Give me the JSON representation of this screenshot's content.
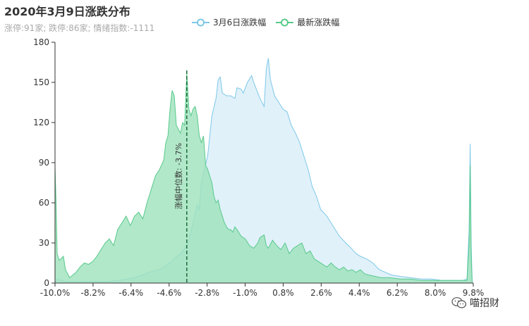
{
  "title": "2020年3月9日涨跌分布",
  "subtitle": "涨停:91家; 跌停:86家; 情绪指数:-1111",
  "watermark": {
    "text": "喵招财",
    "icon": "wechat-icon"
  },
  "chart_data": {
    "type": "area",
    "xlim": [
      -10.0,
      10.0
    ],
    "ylim": [
      0,
      180
    ],
    "x_ticks": [
      "-10.0%",
      "-8.2%",
      "-6.4%",
      "-4.6%",
      "-2.8%",
      "-1.0%",
      "0.8%",
      "2.6%",
      "4.4%",
      "6.2%",
      "8.0%",
      "9.8%"
    ],
    "y_ticks": [
      0,
      30,
      60,
      90,
      120,
      150,
      180
    ],
    "grid": false,
    "legend_position": "top-center",
    "median_line": {
      "x": -3.7,
      "label": "涨幅中位数: -3.7%",
      "color": "#1e6b3a"
    },
    "series": [
      {
        "name": "3月6日涨跌幅",
        "color": "#7cc8e8",
        "fill": "#ddf0fa",
        "points": [
          [
            -10.0,
            0
          ],
          [
            -9.9,
            3
          ],
          [
            -9.7,
            2
          ],
          [
            -9.5,
            1
          ],
          [
            -9.0,
            1
          ],
          [
            -8.5,
            1
          ],
          [
            -8.0,
            1
          ],
          [
            -7.5,
            1
          ],
          [
            -7.0,
            2
          ],
          [
            -6.5,
            3
          ],
          [
            -6.0,
            5
          ],
          [
            -5.5,
            8
          ],
          [
            -5.0,
            10
          ],
          [
            -4.6,
            14
          ],
          [
            -4.3,
            18
          ],
          [
            -4.0,
            22
          ],
          [
            -3.8,
            26
          ],
          [
            -3.6,
            32
          ],
          [
            -3.4,
            45
          ],
          [
            -3.2,
            58
          ],
          [
            -3.1,
            55
          ],
          [
            -3.0,
            75
          ],
          [
            -2.9,
            82
          ],
          [
            -2.7,
            95
          ],
          [
            -2.6,
            110
          ],
          [
            -2.5,
            125
          ],
          [
            -2.3,
            138
          ],
          [
            -2.2,
            152
          ],
          [
            -2.1,
            154
          ],
          [
            -2.0,
            142
          ],
          [
            -1.8,
            140
          ],
          [
            -1.6,
            140
          ],
          [
            -1.4,
            138
          ],
          [
            -1.3,
            146
          ],
          [
            -1.1,
            145
          ],
          [
            -1.0,
            142
          ],
          [
            -0.8,
            150
          ],
          [
            -0.6,
            155
          ],
          [
            -0.5,
            150
          ],
          [
            -0.3,
            142
          ],
          [
            -0.2,
            138
          ],
          [
            0.0,
            132
          ],
          [
            0.1,
            160
          ],
          [
            0.2,
            168
          ],
          [
            0.3,
            152
          ],
          [
            0.5,
            140
          ],
          [
            0.7,
            135
          ],
          [
            0.9,
            130
          ],
          [
            1.1,
            128
          ],
          [
            1.3,
            118
          ],
          [
            1.5,
            112
          ],
          [
            1.7,
            105
          ],
          [
            1.9,
            95
          ],
          [
            2.1,
            85
          ],
          [
            2.3,
            72
          ],
          [
            2.5,
            65
          ],
          [
            2.7,
            55
          ],
          [
            3.0,
            50
          ],
          [
            3.2,
            45
          ],
          [
            3.4,
            40
          ],
          [
            3.6,
            35
          ],
          [
            3.9,
            30
          ],
          [
            4.1,
            27
          ],
          [
            4.4,
            22
          ],
          [
            4.6,
            20
          ],
          [
            4.9,
            18
          ],
          [
            5.2,
            15
          ],
          [
            5.5,
            10
          ],
          [
            5.8,
            8
          ],
          [
            6.1,
            6
          ],
          [
            6.5,
            5
          ],
          [
            7.0,
            4
          ],
          [
            7.5,
            3
          ],
          [
            8.0,
            3
          ],
          [
            8.5,
            2
          ],
          [
            9.0,
            2
          ],
          [
            9.5,
            2
          ],
          [
            9.7,
            3
          ],
          [
            9.8,
            40
          ],
          [
            9.85,
            104
          ],
          [
            9.9,
            30
          ],
          [
            9.95,
            0
          ]
        ]
      },
      {
        "name": "最新涨跌幅",
        "color": "#58c98b",
        "fill": "#9ee2bb",
        "points": [
          [
            -10.0,
            87
          ],
          [
            -9.95,
            60
          ],
          [
            -9.9,
            22
          ],
          [
            -9.8,
            17
          ],
          [
            -9.6,
            20
          ],
          [
            -9.5,
            10
          ],
          [
            -9.3,
            4
          ],
          [
            -9.0,
            8
          ],
          [
            -8.8,
            12
          ],
          [
            -8.6,
            15
          ],
          [
            -8.4,
            14
          ],
          [
            -8.2,
            16
          ],
          [
            -8.0,
            20
          ],
          [
            -7.8,
            25
          ],
          [
            -7.6,
            30
          ],
          [
            -7.4,
            33
          ],
          [
            -7.2,
            28
          ],
          [
            -7.0,
            40
          ],
          [
            -6.8,
            45
          ],
          [
            -6.6,
            50
          ],
          [
            -6.4,
            43
          ],
          [
            -6.2,
            50
          ],
          [
            -6.0,
            53
          ],
          [
            -5.8,
            48
          ],
          [
            -5.6,
            60
          ],
          [
            -5.4,
            70
          ],
          [
            -5.2,
            80
          ],
          [
            -5.0,
            85
          ],
          [
            -4.8,
            92
          ],
          [
            -4.7,
            105
          ],
          [
            -4.6,
            110
          ],
          [
            -4.5,
            130
          ],
          [
            -4.4,
            144
          ],
          [
            -4.3,
            140
          ],
          [
            -4.2,
            118
          ],
          [
            -4.1,
            115
          ],
          [
            -4.0,
            112
          ],
          [
            -3.9,
            120
          ],
          [
            -3.8,
            118
          ],
          [
            -3.7,
            157
          ],
          [
            -3.6,
            130
          ],
          [
            -3.5,
            125
          ],
          [
            -3.4,
            130
          ],
          [
            -3.3,
            132
          ],
          [
            -3.2,
            125
          ],
          [
            -3.1,
            110
          ],
          [
            -3.0,
            105
          ],
          [
            -2.9,
            110
          ],
          [
            -2.8,
            88
          ],
          [
            -2.7,
            85
          ],
          [
            -2.6,
            80
          ],
          [
            -2.5,
            75
          ],
          [
            -2.4,
            65
          ],
          [
            -2.3,
            60
          ],
          [
            -2.2,
            62
          ],
          [
            -2.1,
            55
          ],
          [
            -2.0,
            50
          ],
          [
            -1.9,
            45
          ],
          [
            -1.8,
            42
          ],
          [
            -1.7,
            40
          ],
          [
            -1.6,
            40
          ],
          [
            -1.5,
            38
          ],
          [
            -1.4,
            42
          ],
          [
            -1.3,
            40
          ],
          [
            -1.1,
            35
          ],
          [
            -0.9,
            33
          ],
          [
            -0.7,
            28
          ],
          [
            -0.5,
            26
          ],
          [
            -0.3,
            30
          ],
          [
            -0.2,
            34
          ],
          [
            0.0,
            36
          ],
          [
            0.1,
            28
          ],
          [
            0.2,
            26
          ],
          [
            0.4,
            32
          ],
          [
            0.6,
            28
          ],
          [
            0.8,
            25
          ],
          [
            1.0,
            30
          ],
          [
            1.2,
            22
          ],
          [
            1.4,
            26
          ],
          [
            1.6,
            28
          ],
          [
            1.8,
            30
          ],
          [
            2.0,
            22
          ],
          [
            2.2,
            24
          ],
          [
            2.4,
            18
          ],
          [
            2.6,
            16
          ],
          [
            2.8,
            14
          ],
          [
            3.0,
            12
          ],
          [
            3.2,
            15
          ],
          [
            3.4,
            12
          ],
          [
            3.6,
            10
          ],
          [
            3.8,
            12
          ],
          [
            4.0,
            9
          ],
          [
            4.2,
            10
          ],
          [
            4.4,
            8
          ],
          [
            4.6,
            10
          ],
          [
            4.8,
            7
          ],
          [
            5.0,
            6
          ],
          [
            5.3,
            5
          ],
          [
            5.6,
            4
          ],
          [
            6.0,
            4
          ],
          [
            6.5,
            3
          ],
          [
            7.0,
            3
          ],
          [
            7.5,
            2
          ],
          [
            8.0,
            2
          ],
          [
            8.5,
            2
          ],
          [
            9.0,
            2
          ],
          [
            9.5,
            2
          ],
          [
            9.7,
            2
          ],
          [
            9.8,
            30
          ],
          [
            9.85,
            88
          ],
          [
            9.9,
            20
          ],
          [
            9.95,
            0
          ]
        ]
      }
    ]
  }
}
